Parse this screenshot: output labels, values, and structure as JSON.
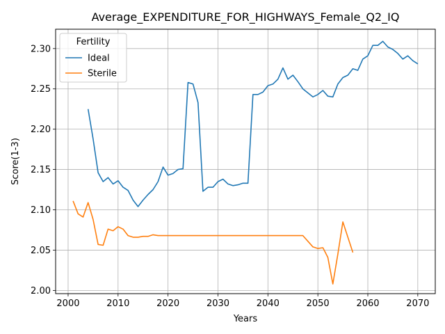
{
  "chart_data": {
    "type": "line",
    "title": "Average_EXPENDITURE_FOR_HIGHWAYS_Female_Q2_IQ",
    "xlabel": "Years",
    "ylabel": "Score(1-3)",
    "xlim": [
      1997.5,
      2073.5
    ],
    "ylim": [
      1.996,
      2.324
    ],
    "xticks": [
      2000,
      2010,
      2020,
      2030,
      2040,
      2050,
      2060,
      2070
    ],
    "yticks": [
      2.0,
      2.05,
      2.1,
      2.15,
      2.2,
      2.25,
      2.3
    ],
    "xtick_labels": [
      "2000",
      "2010",
      "2020",
      "2030",
      "2040",
      "2050",
      "2060",
      "2070"
    ],
    "ytick_labels": [
      "2.00",
      "2.05",
      "2.10",
      "2.15",
      "2.20",
      "2.25",
      "2.30"
    ],
    "grid": true,
    "legend": {
      "title": "Fertility",
      "placement": "top-left"
    },
    "series": [
      {
        "name": "Ideal",
        "color": "#1f77b4",
        "x": [
          2004,
          2005,
          2006,
          2007,
          2008,
          2009,
          2010,
          2011,
          2012,
          2013,
          2014,
          2015,
          2016,
          2017,
          2018,
          2019,
          2020,
          2021,
          2022,
          2023,
          2024,
          2025,
          2026,
          2027,
          2028,
          2029,
          2030,
          2031,
          2032,
          2033,
          2034,
          2035,
          2036,
          2037,
          2038,
          2039,
          2040,
          2041,
          2042,
          2043,
          2044,
          2045,
          2046,
          2047,
          2048,
          2049,
          2050,
          2051,
          2052,
          2053,
          2054,
          2055,
          2056,
          2057,
          2058,
          2059,
          2060,
          2061,
          2062,
          2063,
          2064,
          2065,
          2066,
          2067,
          2068,
          2069,
          2070
        ],
        "y": [
          2.225,
          2.188,
          2.146,
          2.135,
          2.14,
          2.132,
          2.136,
          2.128,
          2.124,
          2.112,
          2.104,
          2.112,
          2.119,
          2.125,
          2.135,
          2.153,
          2.143,
          2.145,
          2.15,
          2.151,
          2.258,
          2.256,
          2.233,
          2.123,
          2.128,
          2.128,
          2.135,
          2.138,
          2.132,
          2.13,
          2.131,
          2.133,
          2.133,
          2.243,
          2.243,
          2.246,
          2.254,
          2.256,
          2.262,
          2.276,
          2.262,
          2.267,
          2.259,
          2.25,
          2.245,
          2.24,
          2.243,
          2.248,
          2.241,
          2.24,
          2.256,
          2.264,
          2.267,
          2.275,
          2.273,
          2.287,
          2.291,
          2.304,
          2.304,
          2.309,
          2.302,
          2.299,
          2.294,
          2.287,
          2.291,
          2.285,
          2.281
        ]
      },
      {
        "name": "Sterile",
        "color": "#ff7f0e",
        "x": [
          2001,
          2002,
          2003,
          2004,
          2005,
          2006,
          2007,
          2008,
          2009,
          2010,
          2011,
          2012,
          2013,
          2014,
          2015,
          2016,
          2017,
          2018,
          2019,
          2020,
          2021,
          2022,
          2023,
          2024,
          2025,
          2026,
          2027,
          2028,
          2029,
          2030,
          2031,
          2032,
          2033,
          2034,
          2035,
          2036,
          2037,
          2038,
          2039,
          2040,
          2041,
          2042,
          2043,
          2044,
          2045,
          2046,
          2047,
          2048,
          2049,
          2050,
          2051,
          2052,
          2053,
          2054,
          2055,
          2056,
          2057
        ],
        "y": [
          2.111,
          2.095,
          2.091,
          2.109,
          2.088,
          2.057,
          2.056,
          2.076,
          2.074,
          2.079,
          2.076,
          2.068,
          2.066,
          2.066,
          2.067,
          2.067,
          2.069,
          2.068,
          2.068,
          2.068,
          2.068,
          2.068,
          2.068,
          2.068,
          2.068,
          2.068,
          2.068,
          2.068,
          2.068,
          2.068,
          2.068,
          2.068,
          2.068,
          2.068,
          2.068,
          2.068,
          2.068,
          2.068,
          2.068,
          2.068,
          2.068,
          2.068,
          2.068,
          2.068,
          2.068,
          2.068,
          2.068,
          2.061,
          2.054,
          2.052,
          2.053,
          2.041,
          2.008,
          2.045,
          2.085,
          2.066,
          2.047
        ]
      }
    ]
  }
}
